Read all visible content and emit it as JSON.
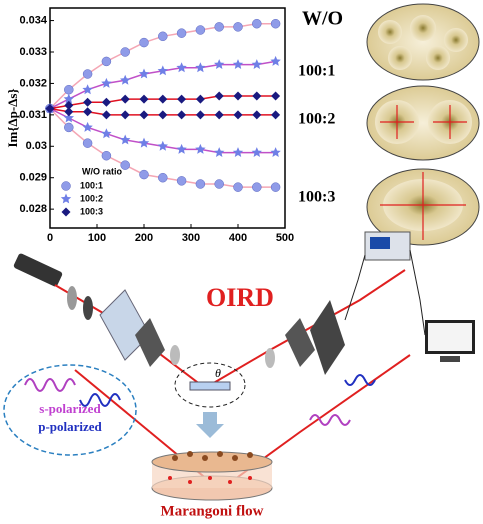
{
  "chart_data": {
    "type": "scatter",
    "y_label": "Im{Δp-Δs}",
    "legend_title": "W/O ratio",
    "x": [
      0,
      40,
      80,
      120,
      160,
      200,
      240,
      280,
      320,
      360,
      400,
      440,
      480
    ],
    "xlim": [
      0,
      500
    ],
    "xticks": [
      0,
      100,
      200,
      300,
      400,
      500
    ],
    "ylim": [
      0.0274,
      0.0344
    ],
    "yticks": [
      0.028,
      0.029,
      0.03,
      0.031,
      0.032,
      0.033,
      0.034
    ],
    "series": [
      {
        "name": "100:1",
        "color": "#8f9be8",
        "fit_color": "#f4a6b4",
        "marker": "circle",
        "upper": [
          0.0312,
          0.0318,
          0.0323,
          0.0327,
          0.033,
          0.0333,
          0.0335,
          0.0336,
          0.0337,
          0.0338,
          0.0338,
          0.0339,
          0.0339
        ],
        "lower": [
          0.0312,
          0.0306,
          0.0301,
          0.0297,
          0.0294,
          0.0291,
          0.029,
          0.0289,
          0.0288,
          0.0288,
          0.0287,
          0.0287,
          0.0287
        ]
      },
      {
        "name": "100:2",
        "color": "#6f7fe6",
        "fit_color": "#c050c8",
        "marker": "star",
        "upper": [
          0.0312,
          0.0315,
          0.0318,
          0.032,
          0.0321,
          0.0323,
          0.0324,
          0.0325,
          0.0325,
          0.0326,
          0.0326,
          0.0326,
          0.0327
        ],
        "lower": [
          0.0312,
          0.0309,
          0.0306,
          0.0304,
          0.0302,
          0.0301,
          0.03,
          0.0299,
          0.0299,
          0.0298,
          0.0298,
          0.0298,
          0.0298
        ]
      },
      {
        "name": "100:3",
        "color": "#1a1a80",
        "fit_color": "#e01020",
        "marker": "diamond",
        "upper": [
          0.0312,
          0.0313,
          0.0314,
          0.0314,
          0.0315,
          0.0315,
          0.0315,
          0.0315,
          0.0315,
          0.0316,
          0.0316,
          0.0316,
          0.0316
        ],
        "lower": [
          0.0312,
          0.0311,
          0.0311,
          0.031,
          0.031,
          0.031,
          0.031,
          0.031,
          0.031,
          0.031,
          0.031,
          0.031,
          0.031
        ]
      }
    ]
  },
  "panel": {
    "title": "W/O",
    "ratios": [
      "100:1",
      "100:2",
      "100:3"
    ]
  },
  "diagram": {
    "title": "OIRD",
    "s_label": "s-polarized",
    "p_label": "p-polarized",
    "angle": "θ",
    "flow_label": "Marangoni flow"
  }
}
